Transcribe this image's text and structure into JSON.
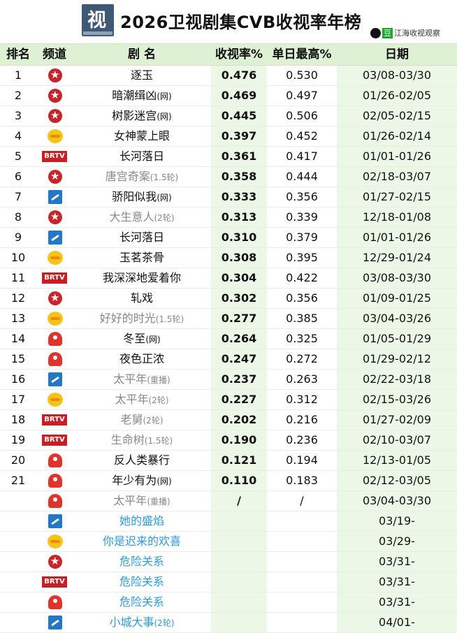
{
  "header": {
    "logo_glyph": "视",
    "title": "2026卫视剧集CVB收视率年榜",
    "watermark_badge": "豆",
    "watermark_text": "江海收视观察"
  },
  "columns": {
    "rank": "排名",
    "channel": "频道",
    "name": "剧 名",
    "rate": "收视率%",
    "peak": "单日最高%",
    "date": "日期"
  },
  "channels": {
    "brtv_label": "BRTV"
  },
  "rows": [
    {
      "rank": "1",
      "ch": "cctv",
      "name": "逐玉",
      "suffix": "",
      "style": "",
      "rate": "0.476",
      "peak": "0.530",
      "date": "03/08-03/30"
    },
    {
      "rank": "2",
      "ch": "cctv",
      "name": "暗潮缉凶",
      "suffix": "(网)",
      "style": "",
      "rate": "0.469",
      "peak": "0.497",
      "date": "01/26-02/05"
    },
    {
      "rank": "3",
      "ch": "cctv",
      "name": "树影迷宫",
      "suffix": "(网)",
      "style": "",
      "rate": "0.445",
      "peak": "0.506",
      "date": "02/05-02/15"
    },
    {
      "rank": "4",
      "ch": "hunan",
      "name": "女神蒙上眼",
      "suffix": "",
      "style": "",
      "rate": "0.397",
      "peak": "0.452",
      "date": "01/26-02/14"
    },
    {
      "rank": "5",
      "ch": "brtv",
      "name": "长河落日",
      "suffix": "",
      "style": "",
      "rate": "0.361",
      "peak": "0.417",
      "date": "01/01-01/26"
    },
    {
      "rank": "6",
      "ch": "cctv",
      "name": "唐宫奇案",
      "suffix": "(1.5轮)",
      "style": "gray",
      "rate": "0.358",
      "peak": "0.444",
      "date": "02/18-03/07"
    },
    {
      "rank": "7",
      "ch": "zj",
      "name": "骄阳似我",
      "suffix": "(网)",
      "style": "",
      "rate": "0.333",
      "peak": "0.356",
      "date": "01/27-02/15"
    },
    {
      "rank": "8",
      "ch": "cctv",
      "name": "大生意人",
      "suffix": "(2轮)",
      "style": "gray",
      "rate": "0.313",
      "peak": "0.339",
      "date": "12/18-01/08"
    },
    {
      "rank": "9",
      "ch": "zj",
      "name": "长河落日",
      "suffix": "",
      "style": "",
      "rate": "0.310",
      "peak": "0.379",
      "date": "01/01-01/26"
    },
    {
      "rank": "10",
      "ch": "hunan",
      "name": "玉茗茶骨",
      "suffix": "",
      "style": "",
      "rate": "0.308",
      "peak": "0.395",
      "date": "12/29-01/24"
    },
    {
      "rank": "11",
      "ch": "brtv",
      "name": "我深深地爱着你",
      "suffix": "",
      "style": "",
      "rate": "0.304",
      "peak": "0.422",
      "date": "03/08-03/30"
    },
    {
      "rank": "12",
      "ch": "cctv",
      "name": "轧戏",
      "suffix": "",
      "style": "",
      "rate": "0.302",
      "peak": "0.356",
      "date": "01/09-01/25"
    },
    {
      "rank": "13",
      "ch": "hunan",
      "name": "好好的时光",
      "suffix": "(1.5轮)",
      "style": "gray",
      "rate": "0.277",
      "peak": "0.385",
      "date": "03/04-03/26"
    },
    {
      "rank": "14",
      "ch": "js",
      "name": "冬至",
      "suffix": "(网)",
      "style": "",
      "rate": "0.264",
      "peak": "0.325",
      "date": "01/05-01/29"
    },
    {
      "rank": "15",
      "ch": "js",
      "name": "夜色正浓",
      "suffix": "",
      "style": "",
      "rate": "0.247",
      "peak": "0.272",
      "date": "01/29-02/12"
    },
    {
      "rank": "16",
      "ch": "zj",
      "name": "太平年",
      "suffix": "(重播)",
      "style": "gray",
      "rate": "0.237",
      "peak": "0.263",
      "date": "02/22-03/18"
    },
    {
      "rank": "17",
      "ch": "hunan",
      "name": "太平年",
      "suffix": "(2轮)",
      "style": "gray",
      "rate": "0.227",
      "peak": "0.312",
      "date": "02/15-03/26"
    },
    {
      "rank": "18",
      "ch": "brtv",
      "name": "老舅",
      "suffix": "(2轮)",
      "style": "gray",
      "rate": "0.202",
      "peak": "0.216",
      "date": "01/27-02/09"
    },
    {
      "rank": "19",
      "ch": "brtv",
      "name": "生命树",
      "suffix": "(1.5轮)",
      "style": "gray",
      "rate": "0.190",
      "peak": "0.236",
      "date": "02/10-03/07"
    },
    {
      "rank": "20",
      "ch": "js",
      "name": "反人类暴行",
      "suffix": "",
      "style": "",
      "rate": "0.121",
      "peak": "0.194",
      "date": "12/13-01/05"
    },
    {
      "rank": "21",
      "ch": "js",
      "name": "年少有为",
      "suffix": "(网)",
      "style": "",
      "rate": "0.110",
      "peak": "0.183",
      "date": "02/12-03/05"
    },
    {
      "rank": "",
      "ch": "js",
      "name": "太平年",
      "suffix": "(重播)",
      "style": "gray",
      "rate": "/",
      "peak": "/",
      "date": "03/04-03/30"
    },
    {
      "rank": "",
      "ch": "zj",
      "name": "她的盛焰",
      "suffix": "",
      "style": "blue",
      "rate": "",
      "peak": "",
      "date": "03/19-"
    },
    {
      "rank": "",
      "ch": "hunan",
      "name": "你是迟来的欢喜",
      "suffix": "",
      "style": "blue",
      "rate": "",
      "peak": "",
      "date": "03/29-"
    },
    {
      "rank": "",
      "ch": "cctv",
      "name": "危险关系",
      "suffix": "",
      "style": "blue",
      "rate": "",
      "peak": "",
      "date": "03/31-"
    },
    {
      "rank": "",
      "ch": "brtv",
      "name": "危险关系",
      "suffix": "",
      "style": "blue",
      "rate": "",
      "peak": "",
      "date": "03/31-"
    },
    {
      "rank": "",
      "ch": "js",
      "name": "危险关系",
      "suffix": "",
      "style": "blue",
      "rate": "",
      "peak": "",
      "date": "03/31-"
    },
    {
      "rank": "",
      "ch": "zj",
      "name": "小城大事",
      "suffix": "(2轮)",
      "style": "blue",
      "rate": "",
      "peak": "",
      "date": "04/01-"
    }
  ]
}
